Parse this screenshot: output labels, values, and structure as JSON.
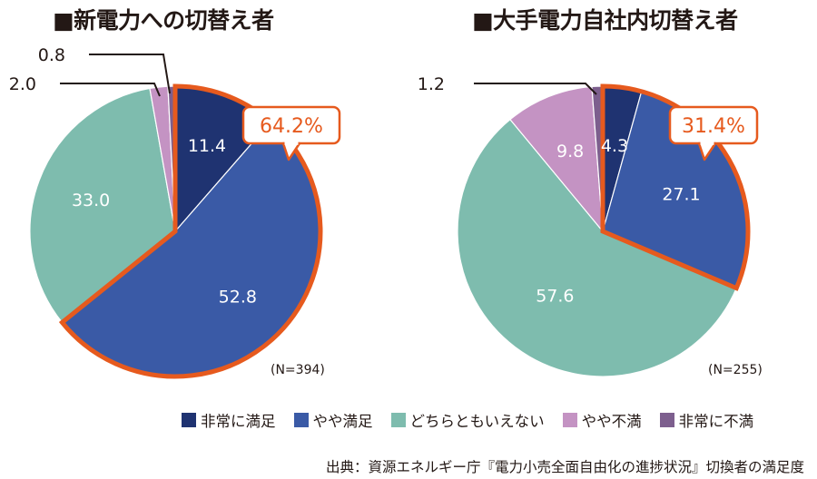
{
  "chart_data": [
    {
      "type": "pie",
      "title": "■新電力への切替え者",
      "n_label": "(N=394)",
      "slices": [
        {
          "label": "非常に満足",
          "value": 11.4,
          "color": "#1f3371",
          "label_text": "11.4"
        },
        {
          "label": "やや満足",
          "value": 52.8,
          "color": "#3a5aa6",
          "label_text": "52.8"
        },
        {
          "label": "どちらともいえない",
          "value": 33.0,
          "color": "#7ebcae",
          "label_text": "33.0"
        },
        {
          "label": "やや不満",
          "value": 2.0,
          "color": "#c493c3",
          "label_text": "2.0"
        },
        {
          "label": "非常に不満",
          "value": 0.8,
          "color": "#7d5f8e",
          "label_text": "0.8"
        }
      ],
      "highlight_total": "64.2%"
    },
    {
      "type": "pie",
      "title": "■大手電力自社内切替え者",
      "n_label": "(N=255)",
      "slices": [
        {
          "label": "非常に満足",
          "value": 4.3,
          "color": "#1f3371",
          "label_text": "4.3"
        },
        {
          "label": "やや満足",
          "value": 27.1,
          "color": "#3a5aa6",
          "label_text": "27.1"
        },
        {
          "label": "どちらともいえない",
          "value": 57.6,
          "color": "#7ebcae",
          "label_text": "57.6"
        },
        {
          "label": "やや不満",
          "value": 9.8,
          "color": "#c493c3",
          "label_text": "9.8"
        },
        {
          "label": "非常に不満",
          "value": 1.2,
          "color": "#7d5f8e",
          "label_text": "1.2"
        }
      ],
      "highlight_total": "31.4%"
    }
  ],
  "legend": [
    {
      "label": "非常に満足",
      "color": "#1f3371"
    },
    {
      "label": "やや満足",
      "color": "#3a5aa6"
    },
    {
      "label": "どちらともいえない",
      "color": "#7ebcae"
    },
    {
      "label": "やや不満",
      "color": "#c493c3"
    },
    {
      "label": "非常に不満",
      "color": "#7d5f8e"
    }
  ],
  "highlight_color": "#e65a1e",
  "source": "出典：資源エネルギー庁『電力小売全面自由化の進捗状況』切換者の満足度"
}
